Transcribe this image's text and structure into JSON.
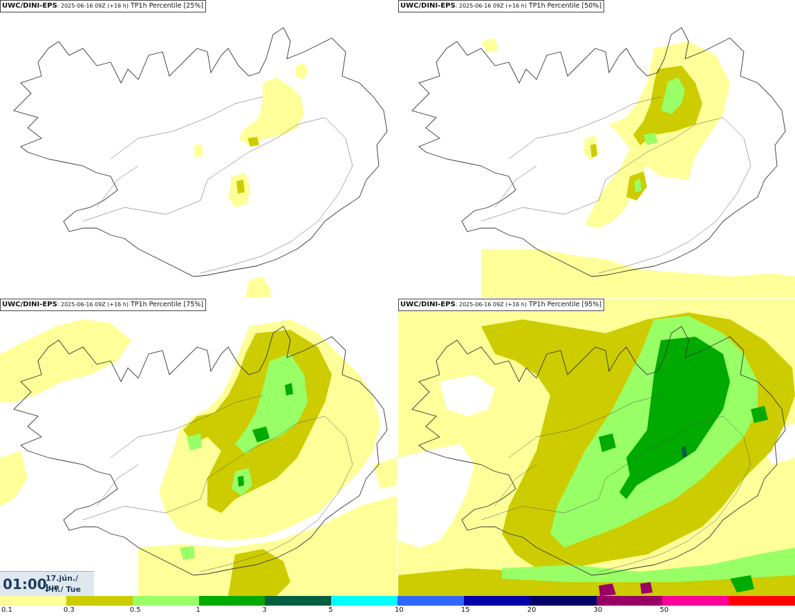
{
  "panels": [
    {
      "model": "UWC/DINI-EPS",
      "run": ": 2025-06-16 09Z (+16 h)",
      "variable": " TP1h Percentile [25%]"
    },
    {
      "model": "UWC/DINI-EPS",
      "run": ": 2025-06-16 09Z (+16 h)",
      "variable": " TP1h Percentile [50%]"
    },
    {
      "model": "UWC/DINI-EPS",
      "run": ": 2025-06-16 09Z (+16 h)",
      "variable": " TP1h Percentile [75%]"
    },
    {
      "model": "UWC/DINI-EPS",
      "run": ": 2025-06-16 09Z (+16 h)",
      "variable": " TP1h Percentile [95%]"
    }
  ],
  "valid_time": {
    "time": "01:00",
    "date": "17.jún./ Jun",
    "weekday": "Þri./ Tue"
  },
  "legend": {
    "labels": [
      "0.1",
      "0.3",
      "0.5",
      "1",
      "3",
      "5",
      "10",
      "15",
      "20",
      "30",
      "50"
    ],
    "colors": [
      "#ffff99",
      "#cccc00",
      "#99ff66",
      "#00aa00",
      "#005f3f",
      "#00ffff",
      "#3366ff",
      "#0000aa",
      "#000066",
      "#990066",
      "#ff0099",
      "#ff0000"
    ]
  }
}
